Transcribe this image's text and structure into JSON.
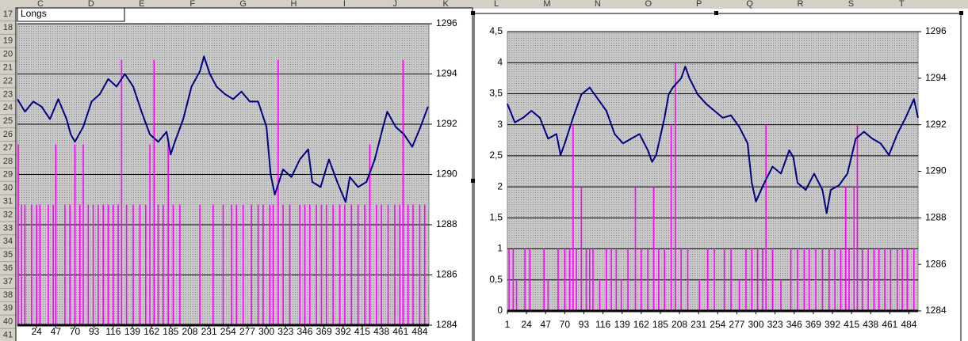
{
  "spreadsheet": {
    "columns": [
      "C",
      "D",
      "E",
      "F",
      "G",
      "H",
      "I",
      "J",
      "K",
      "L",
      "M",
      "N",
      "O",
      "P",
      "Q",
      "R",
      "S",
      "T"
    ],
    "rows": [
      "17",
      "18",
      "19",
      "20",
      "21",
      "22",
      "23",
      "24",
      "25",
      "26",
      "27",
      "28",
      "29",
      "30",
      "31",
      "32",
      "33",
      "34",
      "35",
      "36",
      "37",
      "38",
      "39",
      "40",
      "41"
    ],
    "cell": "Longs"
  },
  "chart_data": [
    {
      "type": "line",
      "xlim": [
        1,
        495
      ],
      "xticks": [
        24,
        47,
        70,
        93,
        116,
        139,
        162,
        185,
        208,
        231,
        254,
        277,
        300,
        323,
        346,
        369,
        392,
        415,
        438,
        461,
        484
      ],
      "ylim": [
        0,
        2.5
      ],
      "y2lim": [
        1284,
        1296
      ],
      "y2ticks": [
        1284,
        1286,
        1288,
        1290,
        1292,
        1294,
        1296
      ],
      "grid": true,
      "series": [
        {
          "type": "bar",
          "color": "#ff00ff",
          "x": [
            2,
            6,
            10,
            18,
            24,
            28,
            38,
            44,
            47,
            58,
            64,
            70,
            76,
            80,
            86,
            92,
            98,
            104,
            110,
            116,
            122,
            126,
            132,
            140,
            148,
            155,
            160,
            165,
            170,
            176,
            182,
            188,
            196,
            220,
            236,
            248,
            258,
            264,
            272,
            282,
            290,
            296,
            304,
            308,
            314,
            320,
            328,
            340,
            346,
            352,
            360,
            366,
            372,
            380,
            388,
            394,
            402,
            410,
            418,
            424,
            432,
            438,
            446,
            454,
            460,
            464,
            470,
            476,
            484,
            490
          ],
          "values": [
            1.5,
            1,
            1,
            1,
            1,
            1,
            1,
            1,
            1.5,
            1,
            1,
            1.5,
            1,
            1.5,
            1,
            1,
            1,
            1,
            1,
            1,
            1,
            2.2,
            1,
            1,
            1,
            1,
            1.5,
            2.2,
            1,
            1,
            1.5,
            1,
            1,
            1,
            1,
            1,
            1,
            1,
            1,
            1,
            1,
            1,
            1,
            1,
            2.2,
            1,
            1,
            1,
            1,
            1,
            1,
            1,
            1,
            1,
            1,
            1,
            1,
            1,
            1,
            1.5,
            1,
            1,
            1,
            1,
            1,
            2.2,
            1,
            1,
            1,
            1
          ]
        },
        {
          "type": "line",
          "color": "#000080",
          "axis": "y2",
          "x": [
            1,
            10,
            20,
            30,
            40,
            50,
            60,
            65,
            70,
            80,
            90,
            100,
            110,
            120,
            130,
            140,
            150,
            160,
            170,
            180,
            185,
            190,
            200,
            210,
            220,
            225,
            232,
            240,
            250,
            260,
            270,
            280,
            290,
            300,
            305,
            310,
            320,
            330,
            340,
            350,
            355,
            365,
            375,
            385,
            395,
            400,
            410,
            420,
            430,
            440,
            445,
            455,
            465,
            475,
            485,
            494
          ],
          "values": [
            1293.0,
            1292.5,
            1292.9,
            1292.7,
            1292.2,
            1293.0,
            1292.2,
            1291.6,
            1291.3,
            1291.9,
            1292.9,
            1293.2,
            1293.8,
            1293.5,
            1294.0,
            1293.5,
            1292.5,
            1291.6,
            1291.3,
            1291.7,
            1290.8,
            1291.3,
            1292.2,
            1293.5,
            1294.1,
            1294.7,
            1294.0,
            1293.5,
            1293.2,
            1293.0,
            1293.3,
            1292.9,
            1292.9,
            1291.9,
            1290.0,
            1289.2,
            1290.2,
            1289.9,
            1290.6,
            1291.0,
            1289.7,
            1289.5,
            1290.6,
            1289.7,
            1288.9,
            1289.9,
            1289.5,
            1289.7,
            1290.6,
            1291.9,
            1292.5,
            1291.9,
            1291.6,
            1291.1,
            1291.9,
            1292.7
          ]
        }
      ]
    },
    {
      "type": "line",
      "xlim": [
        1,
        495
      ],
      "xticks": [
        1,
        24,
        47,
        70,
        93,
        116,
        139,
        162,
        185,
        208,
        231,
        254,
        277,
        300,
        323,
        346,
        369,
        392,
        415,
        438,
        461,
        484
      ],
      "ylim": [
        0,
        4.5
      ],
      "yticks": [
        0,
        {
          "value": 0.5,
          "label": "0,5"
        },
        1,
        {
          "value": 1.5,
          "label": "1,5"
        },
        2,
        {
          "value": 2.5,
          "label": "2,5"
        },
        3,
        {
          "value": 3.5,
          "label": "3,5"
        },
        4,
        {
          "value": 4.5,
          "label": "4,5"
        }
      ],
      "y2lim": [
        1284,
        1296
      ],
      "y2ticks": [
        1284,
        1286,
        1288,
        1290,
        1292,
        1294,
        1296
      ],
      "grid": true,
      "series": [
        {
          "type": "bar",
          "color": "#ff00ff",
          "x": [
            3,
            8,
            12,
            22,
            28,
            45,
            50,
            62,
            70,
            76,
            80,
            84,
            90,
            96,
            100,
            104,
            112,
            120,
            126,
            132,
            138,
            146,
            155,
            162,
            170,
            177,
            183,
            190,
            198,
            203,
            210,
            218,
            232,
            242,
            250,
            262,
            270,
            280,
            288,
            295,
            302,
            308,
            312,
            320,
            330,
            342,
            350,
            358,
            364,
            372,
            380,
            388,
            395,
            402,
            408,
            412,
            418,
            422,
            428,
            435,
            442,
            448,
            455,
            462,
            470,
            476,
            482,
            490
          ],
          "values": [
            1,
            1,
            0.5,
            1,
            1,
            1,
            0.5,
            1,
            1,
            1,
            3,
            1,
            2,
            1,
            1,
            1,
            0.5,
            1,
            1,
            1,
            0.5,
            1,
            2,
            1,
            1,
            2,
            1,
            1,
            3,
            4,
            1,
            1,
            0.5,
            1,
            1,
            1,
            1,
            0.5,
            1,
            1,
            1,
            1,
            3,
            1,
            0.5,
            1,
            1,
            1,
            1,
            1,
            1,
            1,
            1,
            1,
            2,
            1,
            2,
            3,
            1,
            1,
            1,
            1,
            1,
            1,
            1,
            1,
            1,
            1
          ]
        },
        {
          "type": "line",
          "color": "#000080",
          "axis": "y2",
          "x": [
            1,
            10,
            20,
            30,
            40,
            50,
            60,
            65,
            70,
            80,
            90,
            100,
            110,
            120,
            130,
            140,
            150,
            160,
            170,
            175,
            180,
            190,
            195,
            200,
            210,
            215,
            220,
            230,
            240,
            250,
            260,
            270,
            280,
            290,
            295,
            300,
            310,
            320,
            330,
            340,
            345,
            350,
            360,
            370,
            380,
            385,
            390,
            400,
            410,
            420,
            430,
            440,
            450,
            460,
            470,
            480,
            490,
            495
          ],
          "values": [
            1292.9,
            1292.1,
            1292.3,
            1292.6,
            1292.3,
            1291.4,
            1291.6,
            1290.7,
            1291.2,
            1292.3,
            1293.3,
            1293.6,
            1293.1,
            1292.6,
            1291.6,
            1291.2,
            1291.4,
            1291.6,
            1290.9,
            1290.4,
            1290.7,
            1292.3,
            1293.3,
            1293.6,
            1294.0,
            1294.5,
            1294.0,
            1293.3,
            1292.9,
            1292.6,
            1292.3,
            1292.4,
            1291.9,
            1291.2,
            1289.5,
            1288.7,
            1289.5,
            1290.2,
            1289.9,
            1290.9,
            1290.6,
            1289.5,
            1289.2,
            1289.9,
            1289.2,
            1288.2,
            1289.2,
            1289.4,
            1289.9,
            1291.4,
            1291.7,
            1291.4,
            1291.2,
            1290.7,
            1291.6,
            1292.3,
            1293.1,
            1292.3
          ]
        }
      ]
    }
  ]
}
